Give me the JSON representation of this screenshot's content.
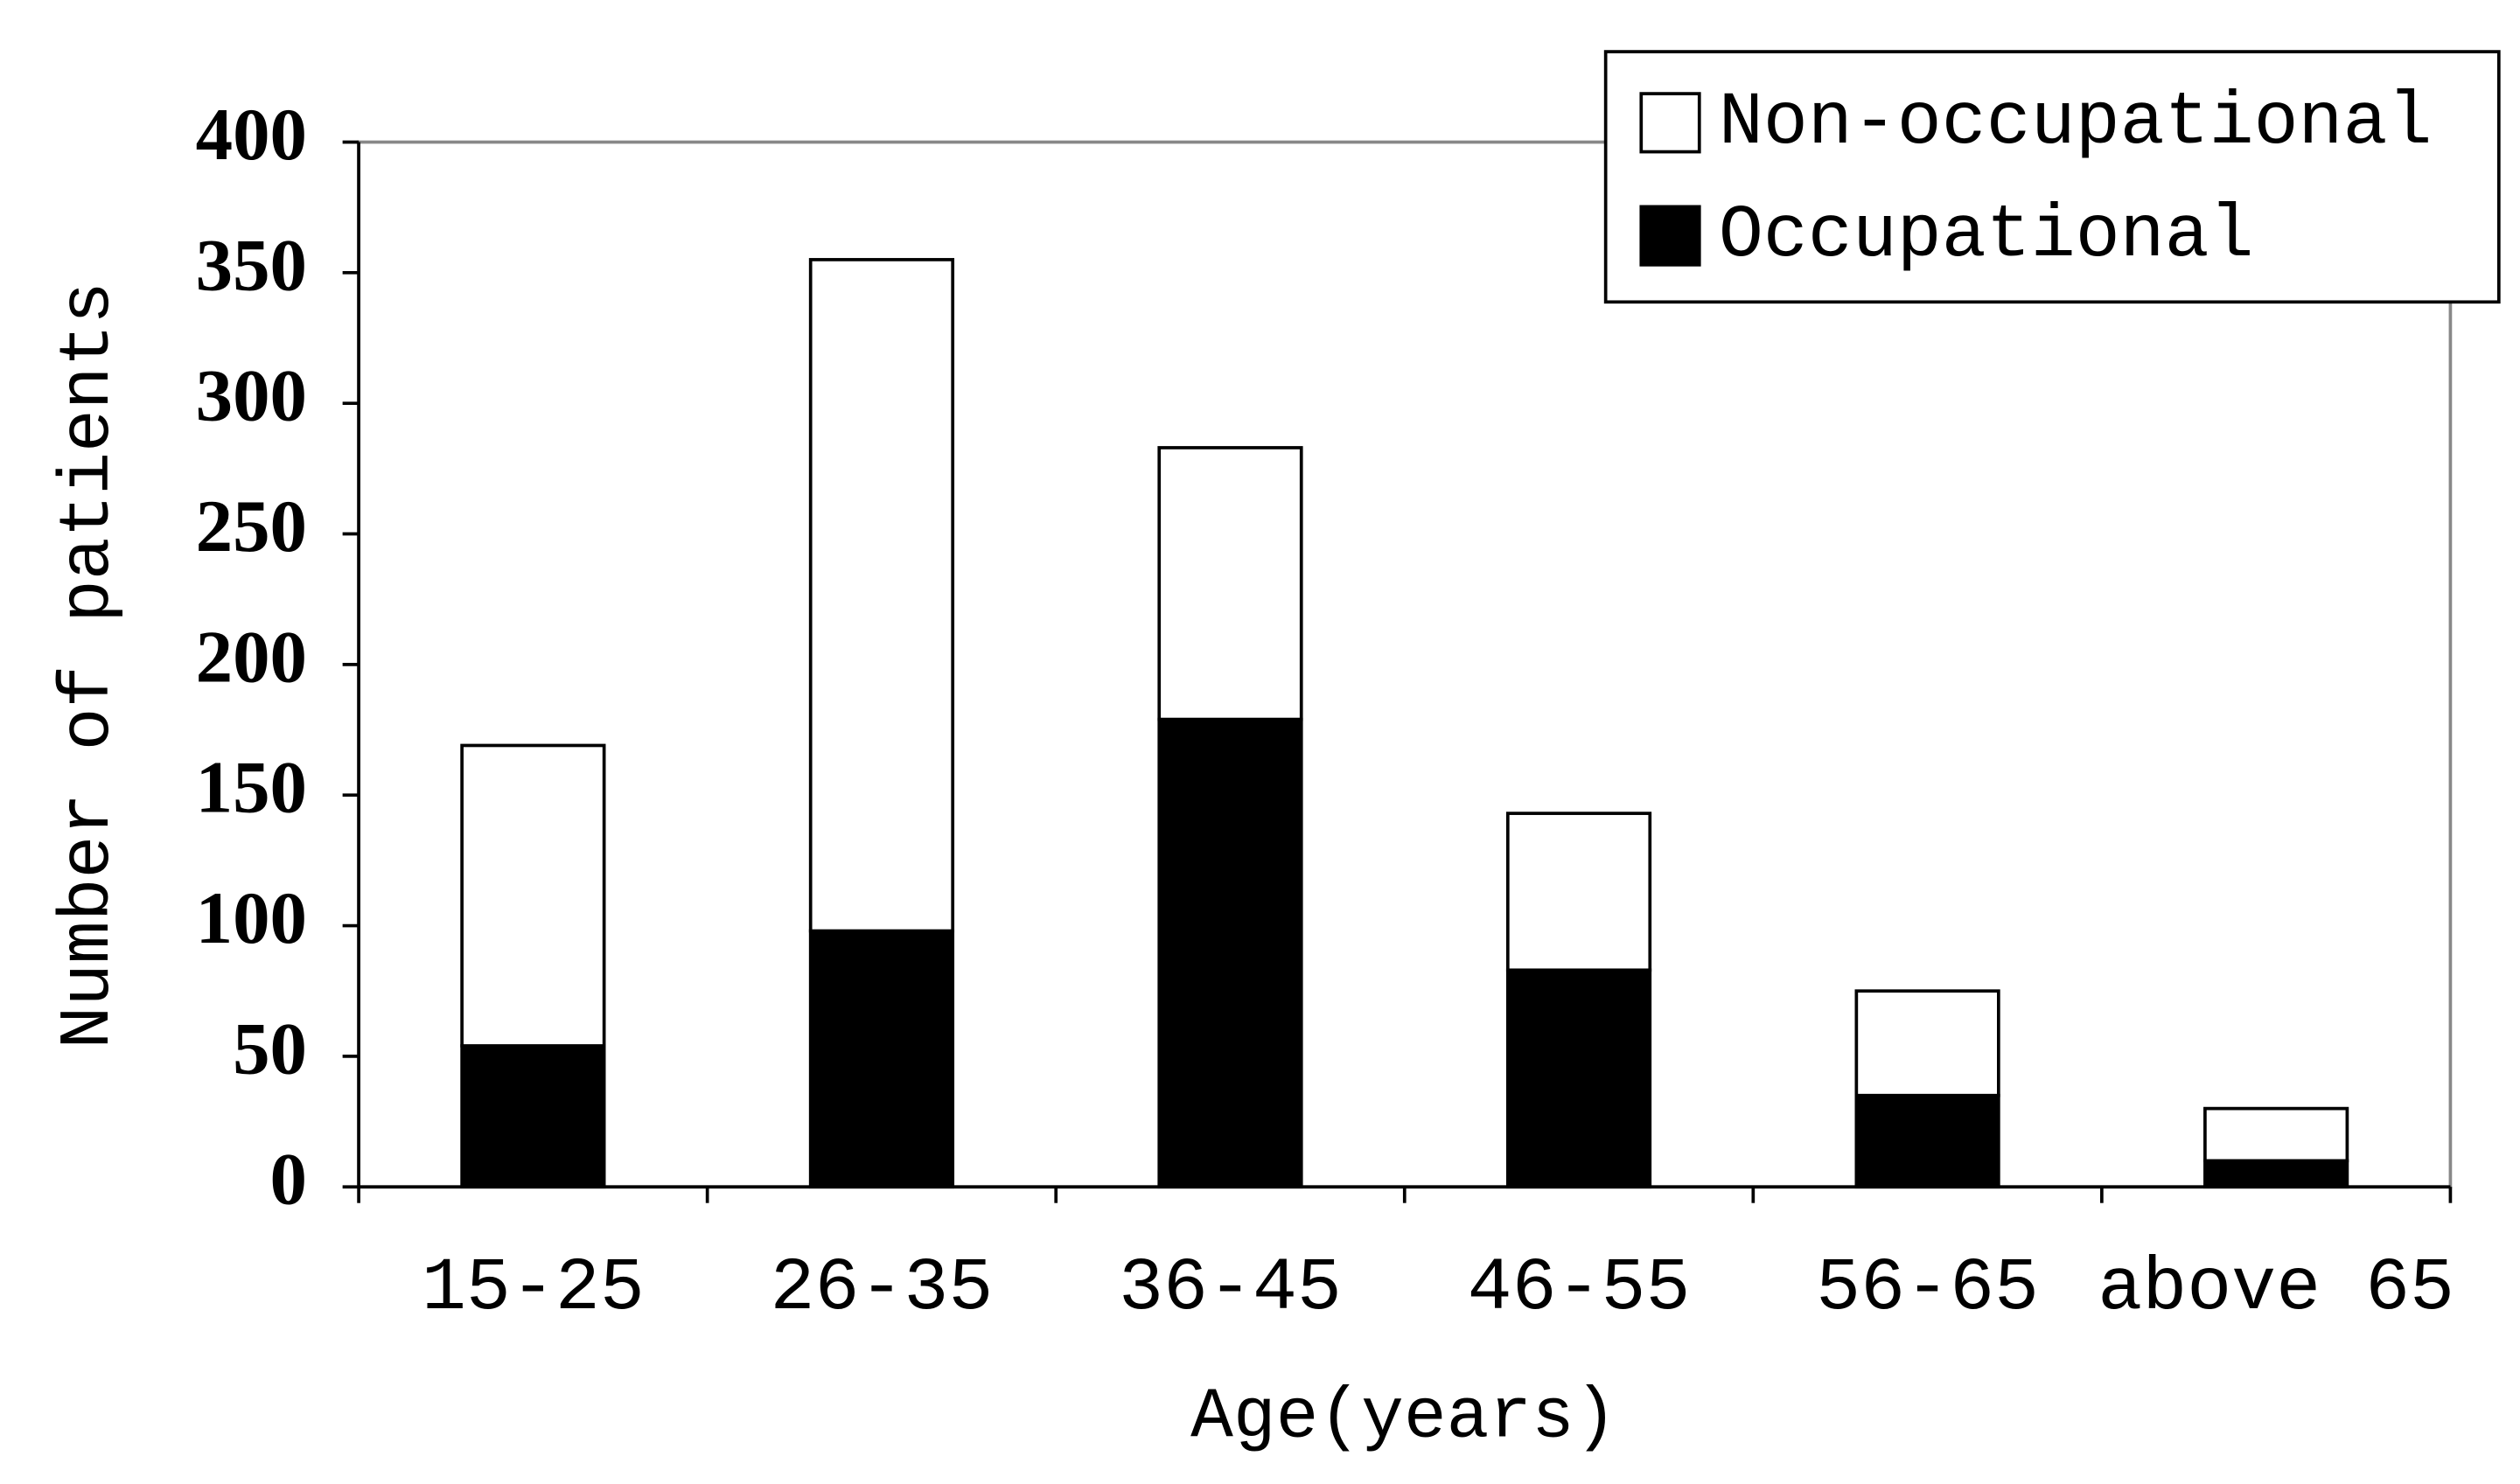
{
  "chart_data": {
    "type": "stacked_bar",
    "x_label": "Age(years)",
    "y_label": "Number of patients",
    "categories": [
      "15-25",
      "26-35",
      "36-45",
      "46-55",
      "56-65",
      "above 65"
    ],
    "series": [
      {
        "name": "Occupational",
        "color": "#000000",
        "values": [
          54,
          98,
          179,
          83,
          35,
          10
        ]
      },
      {
        "name": "Non-occupational",
        "color": "#ffffff",
        "values": [
          115,
          257,
          104,
          60,
          40,
          20
        ]
      }
    ],
    "ylim": [
      0,
      400
    ],
    "yticks": [
      0,
      50,
      100,
      150,
      200,
      250,
      300,
      350,
      400
    ],
    "legend": "upper right"
  }
}
